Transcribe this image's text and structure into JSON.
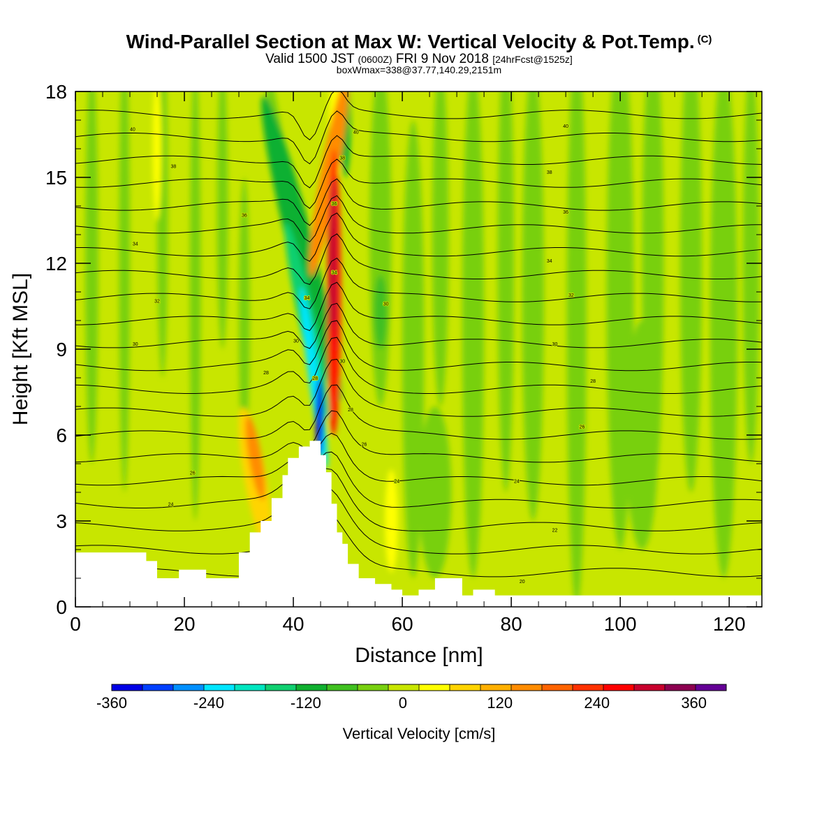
{
  "title": {
    "main": "Wind-Parallel Section at Max W: Vertical Velocity & Pot.Temp.",
    "copyright_mark": "(C)",
    "valid_prefix": "Valid 1500 JST",
    "valid_zulu": "(0600Z)",
    "valid_date": "FRI 9 Nov 2018",
    "forecast": "[24hrFcst@1525z]",
    "box_info": "boxWmax=338@37.77,140.29,2151m"
  },
  "chart_data": {
    "type": "heatmap",
    "xlabel": "Distance [nm]",
    "ylabel": "Height [Kft MSL]",
    "xlim": [
      0,
      126
    ],
    "ylim": [
      0,
      18
    ],
    "x_ticks": [
      "0",
      "20",
      "40",
      "60",
      "80",
      "100",
      "120"
    ],
    "x_tick_values": [
      0,
      20,
      40,
      60,
      80,
      100,
      120
    ],
    "y_ticks": [
      "0",
      "3",
      "6",
      "9",
      "12",
      "15",
      "18"
    ],
    "y_tick_values": [
      0,
      3,
      6,
      9,
      12,
      15,
      18
    ],
    "grid": false,
    "colorbar": {
      "title": "Vertical Velocity [cm/s]",
      "tick_labels": [
        "-360",
        "-240",
        "-120",
        "0",
        "120",
        "240",
        "360"
      ],
      "tick_values": [
        -360,
        -240,
        -120,
        0,
        120,
        240,
        360
      ],
      "range": [
        -360,
        400
      ],
      "colors": [
        "#0000e6",
        "#0040ff",
        "#0090ff",
        "#00e6ff",
        "#00e6c0",
        "#10d070",
        "#10b030",
        "#40c020",
        "#78d010",
        "#c8e600",
        "#ffff00",
        "#ffd400",
        "#ffb000",
        "#ff8c00",
        "#ff6400",
        "#ff3200",
        "#ff0000",
        "#c8002d",
        "#8c0050",
        "#640096"
      ]
    },
    "terrain_kft": [
      [
        0,
        1.9
      ],
      [
        12,
        1.9
      ],
      [
        13,
        1.6
      ],
      [
        15,
        1.0
      ],
      [
        17,
        1.0
      ],
      [
        19,
        1.3
      ],
      [
        22,
        1.3
      ],
      [
        24,
        1.0
      ],
      [
        28,
        1.0
      ],
      [
        30,
        1.9
      ],
      [
        32,
        2.6
      ],
      [
        34,
        3.0
      ],
      [
        36,
        3.8
      ],
      [
        38,
        4.6
      ],
      [
        39,
        5.2
      ],
      [
        41,
        5.6
      ],
      [
        43,
        5.8
      ],
      [
        44,
        5.8
      ],
      [
        45,
        5.3
      ],
      [
        46,
        4.7
      ],
      [
        47,
        3.6
      ],
      [
        48,
        2.6
      ],
      [
        49,
        2.2
      ],
      [
        50,
        1.5
      ],
      [
        52,
        1.0
      ],
      [
        55,
        0.8
      ],
      [
        58,
        0.6
      ],
      [
        60,
        0.4
      ],
      [
        63,
        0.6
      ],
      [
        66,
        1.0
      ],
      [
        69,
        1.0
      ],
      [
        71,
        0.4
      ],
      [
        73,
        0.6
      ],
      [
        75,
        0.6
      ],
      [
        77,
        0.4
      ],
      [
        126,
        0.4
      ]
    ],
    "potential_temperature_contour_labels": [
      {
        "value": "40",
        "x": 10.5,
        "y": 16.7
      },
      {
        "value": "38",
        "x": 18,
        "y": 15.4
      },
      {
        "value": "36",
        "x": 31,
        "y": 13.7
      },
      {
        "value": "34",
        "x": 11,
        "y": 12.7
      },
      {
        "value": "32",
        "x": 15,
        "y": 10.7
      },
      {
        "value": "30",
        "x": 11,
        "y": 9.2
      },
      {
        "value": "28",
        "x": 35,
        "y": 8.2
      },
      {
        "value": "26",
        "x": 21.5,
        "y": 4.7
      },
      {
        "value": "24",
        "x": 17.5,
        "y": 3.6
      },
      {
        "value": "34",
        "x": 42.5,
        "y": 10.8
      },
      {
        "value": "30",
        "x": 40.5,
        "y": 9.3
      },
      {
        "value": "28",
        "x": 44,
        "y": 8.0
      },
      {
        "value": "36",
        "x": 47.5,
        "y": 14.1
      },
      {
        "value": "38",
        "x": 49,
        "y": 15.7
      },
      {
        "value": "40",
        "x": 51.5,
        "y": 16.6
      },
      {
        "value": "34",
        "x": 47.5,
        "y": 11.7
      },
      {
        "value": "30",
        "x": 49,
        "y": 8.6
      },
      {
        "value": "28",
        "x": 50.5,
        "y": 6.9
      },
      {
        "value": "26",
        "x": 53,
        "y": 5.7
      },
      {
        "value": "30",
        "x": 57,
        "y": 10.6
      },
      {
        "value": "24",
        "x": 59,
        "y": 4.4
      },
      {
        "value": "40",
        "x": 90,
        "y": 16.8
      },
      {
        "value": "38",
        "x": 87,
        "y": 15.2
      },
      {
        "value": "36",
        "x": 90,
        "y": 13.8
      },
      {
        "value": "34",
        "x": 87,
        "y": 12.1
      },
      {
        "value": "32",
        "x": 91,
        "y": 10.9
      },
      {
        "value": "30",
        "x": 88,
        "y": 9.2
      },
      {
        "value": "28",
        "x": 95,
        "y": 7.9
      },
      {
        "value": "26",
        "x": 93,
        "y": 6.3
      },
      {
        "value": "24",
        "x": 81,
        "y": 4.4
      },
      {
        "value": "22",
        "x": 88,
        "y": 2.7
      },
      {
        "value": "20",
        "x": 82,
        "y": 0.9
      }
    ]
  }
}
